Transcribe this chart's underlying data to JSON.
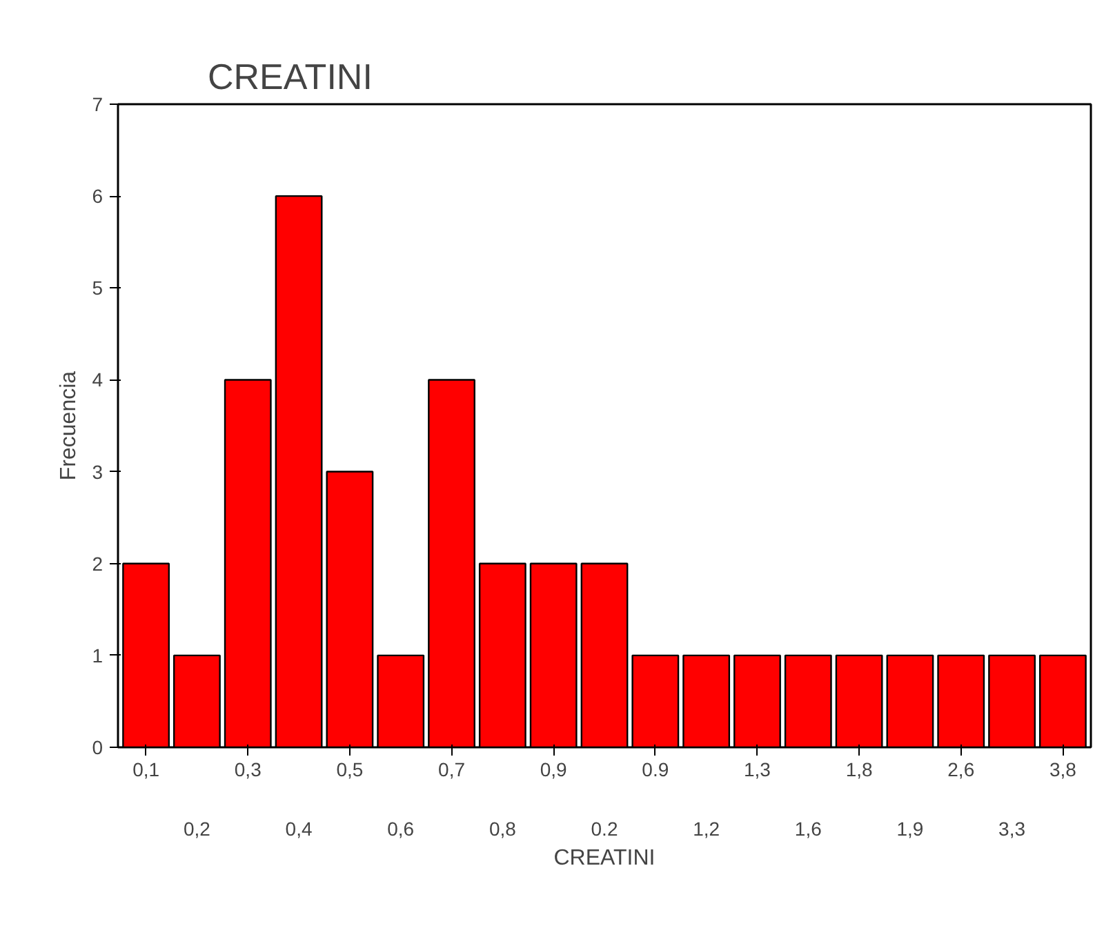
{
  "chart_data": {
    "type": "bar",
    "title": "CREATINI",
    "xlabel": "CREATINI",
    "ylabel": "Frecuencia",
    "categories": [
      "0,1",
      "0,2",
      "0,3",
      "0,4",
      "0,5",
      "0,6",
      "0,7",
      "0,8",
      "0,9",
      "0.2",
      "0.9",
      "1,2",
      "1,3",
      "1,6",
      "1,8",
      "1,9",
      "2,6",
      "3,3",
      "3,8"
    ],
    "values": [
      2,
      1,
      4,
      6,
      3,
      1,
      4,
      2,
      2,
      2,
      1,
      1,
      1,
      1,
      1,
      1,
      1,
      1,
      1
    ],
    "color": "#ff0000",
    "ylim": [
      0,
      7
    ],
    "yticks": [
      0,
      1,
      2,
      3,
      4,
      5,
      6,
      7
    ],
    "grid": false
  }
}
